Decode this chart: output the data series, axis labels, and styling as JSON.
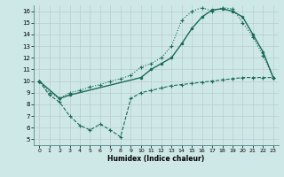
{
  "xlabel": "Humidex (Indice chaleur)",
  "bg_color": "#cee8e8",
  "grid_color": "#bbcccc",
  "line_color": "#1a6b5a",
  "xlim": [
    -0.5,
    23.5
  ],
  "ylim": [
    4.5,
    16.5
  ],
  "xticks": [
    0,
    1,
    2,
    3,
    4,
    5,
    6,
    7,
    8,
    9,
    10,
    11,
    12,
    13,
    14,
    15,
    16,
    17,
    18,
    19,
    20,
    21,
    22,
    23
  ],
  "yticks": [
    5,
    6,
    7,
    8,
    9,
    10,
    11,
    12,
    13,
    14,
    15,
    16
  ],
  "line1_x": [
    0,
    1,
    2,
    3,
    4,
    5,
    6,
    7,
    8,
    9,
    10,
    11,
    12,
    13,
    14,
    15,
    16,
    17,
    18,
    19,
    20,
    21,
    22,
    23
  ],
  "line1_y": [
    10.0,
    9.0,
    8.5,
    9.0,
    9.2,
    9.5,
    9.7,
    10.0,
    10.2,
    10.5,
    11.2,
    11.5,
    12.0,
    13.0,
    15.2,
    16.0,
    16.3,
    16.0,
    16.3,
    16.2,
    15.0,
    13.8,
    12.2,
    10.3
  ],
  "line2_x": [
    0,
    2,
    3,
    10,
    11,
    12,
    13,
    14,
    15,
    16,
    17,
    18,
    19,
    20,
    21,
    22,
    23
  ],
  "line2_y": [
    10.0,
    8.5,
    8.8,
    10.3,
    11.0,
    11.5,
    12.0,
    13.2,
    14.5,
    15.5,
    16.1,
    16.2,
    16.0,
    15.5,
    14.0,
    12.5,
    10.3
  ],
  "line3_x": [
    0,
    1,
    2,
    3,
    4,
    5,
    6,
    7,
    8,
    9,
    10,
    11,
    12,
    13,
    14,
    15,
    16,
    17,
    18,
    19,
    20,
    21,
    22,
    23
  ],
  "line3_y": [
    10.0,
    8.8,
    8.2,
    7.0,
    6.2,
    5.8,
    6.3,
    5.8,
    5.2,
    8.5,
    9.0,
    9.2,
    9.4,
    9.6,
    9.7,
    9.8,
    9.9,
    10.0,
    10.1,
    10.2,
    10.3,
    10.3,
    10.3,
    10.3
  ]
}
